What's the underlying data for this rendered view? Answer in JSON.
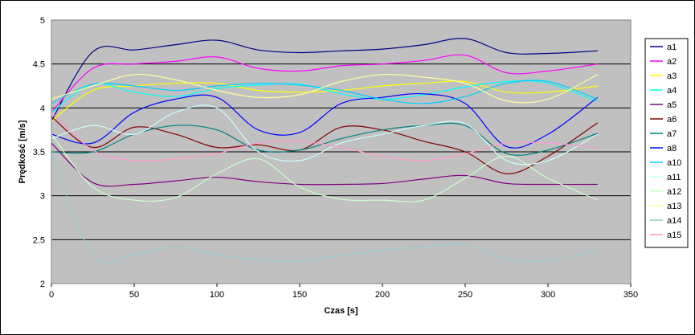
{
  "chart_data": {
    "type": "line",
    "title": "",
    "xlabel": "Czas [s]",
    "ylabel": "Prędkość [m/s]",
    "xlim": [
      0,
      350
    ],
    "ylim": [
      2,
      5
    ],
    "x_ticks": [
      "0",
      "50",
      "100",
      "150",
      "200",
      "250",
      "300",
      "350"
    ],
    "y_ticks": [
      "2",
      "2.5",
      "3",
      "3.5",
      "4",
      "4.5",
      "5"
    ],
    "grid": "horizontal",
    "legend_position": "right",
    "plot_background": "#C0C0C0",
    "x": [
      0,
      25,
      50,
      75,
      100,
      125,
      150,
      175,
      200,
      225,
      250,
      275,
      300,
      330
    ],
    "series": [
      {
        "name": "a1",
        "color": "#000080",
        "values": [
          3.85,
          4.64,
          4.66,
          4.72,
          4.77,
          4.66,
          4.63,
          4.65,
          4.67,
          4.72,
          4.79,
          4.63,
          4.62,
          4.65
        ]
      },
      {
        "name": "a2",
        "color": "#FF00FF",
        "values": [
          3.95,
          4.45,
          4.5,
          4.53,
          4.58,
          4.45,
          4.42,
          4.48,
          4.5,
          4.54,
          4.6,
          4.4,
          4.42,
          4.5
        ]
      },
      {
        "name": "a3",
        "color": "#FFFF00",
        "values": [
          3.85,
          4.2,
          4.25,
          4.28,
          4.28,
          4.2,
          4.18,
          4.2,
          4.25,
          4.28,
          4.3,
          4.18,
          4.18,
          4.25
        ]
      },
      {
        "name": "a4",
        "color": "#00FFFF",
        "values": [
          3.95,
          4.27,
          4.18,
          4.13,
          4.22,
          4.26,
          4.27,
          4.16,
          4.1,
          4.15,
          4.24,
          4.3,
          4.28,
          4.07
        ]
      },
      {
        "name": "a5",
        "color": "#800080",
        "values": [
          3.6,
          3.15,
          3.13,
          3.17,
          3.21,
          3.16,
          3.13,
          3.13,
          3.14,
          3.19,
          3.23,
          3.14,
          3.13,
          3.13
        ]
      },
      {
        "name": "a6",
        "color": "#800000",
        "values": [
          3.9,
          3.55,
          3.78,
          3.7,
          3.55,
          3.58,
          3.52,
          3.78,
          3.75,
          3.62,
          3.5,
          3.25,
          3.45,
          3.83
        ]
      },
      {
        "name": "a7",
        "color": "#008080",
        "values": [
          3.5,
          3.5,
          3.7,
          3.8,
          3.75,
          3.52,
          3.52,
          3.65,
          3.75,
          3.8,
          3.8,
          3.48,
          3.52,
          3.71
        ]
      },
      {
        "name": "a8",
        "color": "#0000FF",
        "values": [
          3.7,
          3.6,
          3.95,
          4.1,
          4.12,
          3.75,
          3.72,
          4.05,
          4.12,
          4.16,
          4.05,
          3.56,
          3.7,
          4.12
        ]
      },
      {
        "name": "a10",
        "color": "#00CCFF",
        "values": [
          4.05,
          4.27,
          4.25,
          4.2,
          4.25,
          4.28,
          4.26,
          4.2,
          4.1,
          4.05,
          4.13,
          4.28,
          4.3,
          4.1
        ]
      },
      {
        "name": "a11",
        "color": "#CCFFFF",
        "values": [
          3.65,
          3.8,
          3.7,
          3.95,
          4.0,
          3.5,
          3.4,
          3.6,
          3.7,
          3.8,
          3.82,
          3.4,
          3.4,
          3.7
        ]
      },
      {
        "name": "a12",
        "color": "#CCFFCC",
        "values": [
          3.7,
          3.1,
          2.95,
          2.98,
          3.25,
          3.42,
          3.1,
          2.96,
          2.95,
          2.95,
          3.2,
          3.45,
          3.2,
          2.95
        ]
      },
      {
        "name": "a13",
        "color": "#FFFF99",
        "values": [
          4.1,
          4.25,
          4.38,
          4.32,
          4.2,
          4.12,
          4.15,
          4.3,
          4.38,
          4.35,
          4.28,
          4.08,
          4.1,
          4.38
        ]
      },
      {
        "name": "a14",
        "color": "#99CCCC",
        "values": [
          3.5,
          2.32,
          2.33,
          2.42,
          2.33,
          2.27,
          2.26,
          2.32,
          2.38,
          2.42,
          2.44,
          2.28,
          2.26,
          2.38
        ]
      },
      {
        "name": "a15",
        "color": "#FF99CC",
        "values": [
          3.95,
          3.52,
          3.4,
          3.42,
          3.48,
          3.6,
          3.62,
          3.55,
          3.45,
          3.4,
          3.48,
          3.6,
          3.6,
          3.55
        ]
      }
    ]
  }
}
